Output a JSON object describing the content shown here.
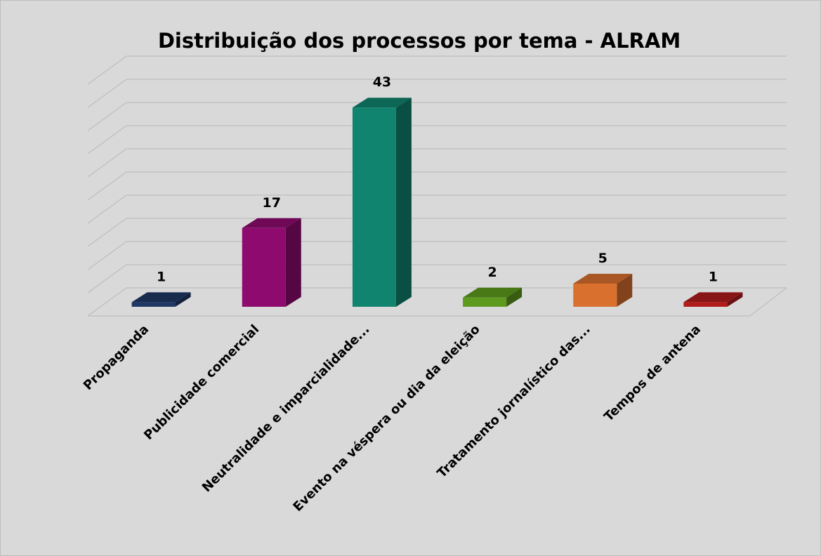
{
  "chart_data": {
    "type": "bar3d",
    "title": "Distribuição dos processos por tema - ALRAM",
    "categories": [
      "Propaganda",
      "Publicidade comercial",
      "Neutralidade e imparcialidade...",
      "Evento na véspera ou dia da eleição",
      "Tratamento jornalístico das...",
      "Tempos de antena"
    ],
    "values": [
      1,
      17,
      43,
      2,
      5,
      1
    ],
    "colors": [
      "#1f3864",
      "#8e0a6f",
      "#118470",
      "#5e9a1e",
      "#d9702e",
      "#b01c1c"
    ],
    "ylim": [
      0,
      50
    ],
    "yticks": [
      0,
      5,
      10,
      15,
      20,
      25,
      30,
      35,
      40,
      45,
      50
    ],
    "grid": true
  }
}
